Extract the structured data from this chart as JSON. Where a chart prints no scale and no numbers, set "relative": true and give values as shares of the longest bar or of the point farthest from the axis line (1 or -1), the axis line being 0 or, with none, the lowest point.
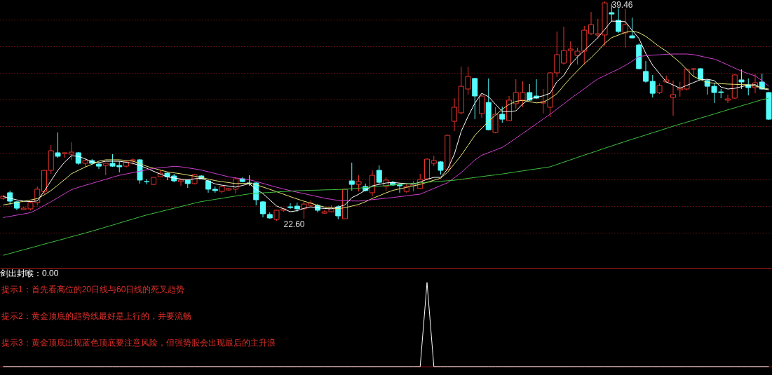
{
  "chart_data": [
    {
      "type": "candlestick",
      "categories": [
        null,
        null,
        null,
        null,
        null,
        null,
        null,
        null,
        null,
        null,
        null,
        null,
        null,
        null,
        null,
        null,
        null,
        null,
        null,
        null,
        null,
        null,
        null,
        null,
        null,
        null,
        null,
        null,
        null,
        null,
        null,
        null,
        null,
        null,
        null,
        null,
        null,
        null,
        null,
        null,
        null,
        null,
        null,
        null,
        null,
        null,
        null,
        null,
        null,
        null,
        null,
        null,
        null,
        null,
        null,
        null,
        null,
        null,
        null,
        null,
        null,
        null,
        null,
        null,
        null,
        null,
        null,
        null,
        null,
        null,
        null,
        null,
        null,
        null,
        null,
        null,
        null,
        null,
        null,
        null,
        null,
        null,
        null,
        null,
        null,
        null,
        null,
        null,
        null,
        null,
        null,
        null,
        null,
        null,
        null,
        null,
        null,
        null,
        null,
        null,
        null,
        null,
        null,
        null,
        null,
        null,
        null,
        null,
        null,
        null,
        null,
        null,
        null
      ],
      "ylim": [
        18.94,
        39.57
      ],
      "yticks": [
        {
          "value": 38.06,
          "label": null
        },
        {
          "value": 36.01,
          "label": null
        },
        {
          "value": 33.97,
          "label": null
        },
        {
          "value": 31.92,
          "label": null
        },
        {
          "value": 29.87,
          "label": null
        },
        {
          "value": 27.82,
          "label": null
        },
        {
          "value": 25.78,
          "label": null
        },
        {
          "value": 23.73,
          "label": null
        },
        {
          "value": 21.68,
          "label": null
        }
      ],
      "grid": "y",
      "tick_labels": false,
      "ohlc": [
        [
          24.32,
          24.59,
          24.22,
          24.49
        ],
        [
          24.76,
          24.92,
          23.84,
          24.11
        ],
        [
          24.06,
          24.11,
          23.41,
          23.57
        ],
        [
          23.46,
          23.68,
          23.41,
          23.57
        ],
        [
          23.52,
          24.11,
          23.41,
          24.0
        ],
        [
          24.0,
          25.24,
          23.79,
          25.03
        ],
        [
          24.86,
          26.53,
          24.65,
          26.48
        ],
        [
          26.48,
          28.42,
          26.21,
          27.99
        ],
        [
          27.83,
          29.39,
          27.45,
          27.56
        ],
        [
          27.77,
          27.83,
          27.45,
          27.83
        ],
        [
          27.72,
          28.63,
          27.29,
          27.88
        ],
        [
          27.83,
          27.88,
          26.91,
          27.02
        ],
        [
          27.02,
          27.4,
          26.75,
          27.23
        ],
        [
          27.23,
          27.34,
          26.91,
          27.02
        ],
        [
          26.96,
          27.07,
          26.59,
          26.8
        ],
        [
          26.86,
          27.07,
          26.1,
          27.02
        ],
        [
          27.02,
          27.72,
          26.75,
          26.8
        ],
        [
          26.86,
          27.18,
          26.32,
          26.75
        ],
        [
          26.8,
          27.23,
          26.7,
          27.13
        ],
        [
          27.23,
          27.4,
          26.91,
          27.29
        ],
        [
          27.29,
          27.34,
          25.46,
          25.73
        ],
        [
          25.62,
          25.83,
          25.4,
          25.59
        ],
        [
          25.4,
          25.94,
          25.35,
          25.94
        ],
        [
          25.99,
          26.53,
          25.94,
          26.26
        ],
        [
          26.26,
          26.32,
          25.73,
          25.99
        ],
        [
          26.05,
          26.21,
          25.56,
          25.67
        ],
        [
          25.62,
          25.83,
          25.29,
          25.73
        ],
        [
          25.73,
          25.78,
          25.13,
          25.46
        ],
        [
          25.46,
          26.21,
          25.4,
          26.16
        ],
        [
          26.05,
          26.1,
          25.78,
          25.83
        ],
        [
          25.67,
          25.73,
          24.76,
          25.03
        ],
        [
          25.03,
          25.24,
          24.76,
          24.92
        ],
        [
          24.86,
          25.29,
          24.7,
          25.24
        ],
        [
          24.97,
          25.13,
          24.92,
          25.08
        ],
        [
          25.03,
          25.94,
          24.7,
          25.83
        ],
        [
          25.83,
          25.94,
          25.56,
          25.62
        ],
        [
          25.51,
          26.1,
          25.29,
          25.46
        ],
        [
          25.51,
          25.56,
          23.79,
          24.22
        ],
        [
          24.06,
          24.11,
          22.87,
          23.14
        ],
        [
          23.09,
          23.25,
          22.76,
          22.82
        ],
        [
          22.71,
          23.46,
          22.6,
          23.41
        ],
        [
          23.41,
          23.57,
          23.3,
          23.52
        ],
        [
          23.68,
          23.95,
          23.52,
          23.62
        ],
        [
          23.73,
          24.0,
          23.3,
          23.52
        ],
        [
          23.52,
          24.11,
          22.76,
          23.89
        ],
        [
          23.79,
          24.16,
          23.68,
          23.95
        ],
        [
          23.79,
          23.89,
          23.25,
          23.41
        ],
        [
          23.19,
          23.41,
          23.14,
          23.3
        ],
        [
          23.3,
          23.79,
          23.25,
          23.57
        ],
        [
          23.68,
          23.79,
          22.71,
          22.98
        ],
        [
          22.76,
          25.08,
          22.76,
          25.03
        ],
        [
          25.67,
          27.07,
          24.92,
          25.4
        ],
        [
          25.4,
          26.1,
          24.86,
          25.62
        ],
        [
          25.24,
          25.46,
          24.86,
          24.92
        ],
        [
          24.76,
          26.48,
          24.49,
          26.1
        ],
        [
          26.48,
          26.86,
          25.4,
          25.56
        ],
        [
          25.24,
          25.94,
          24.92,
          25.73
        ],
        [
          25.56,
          25.67,
          25.29,
          25.35
        ],
        [
          25.4,
          25.46,
          24.76,
          25.29
        ],
        [
          24.86,
          25.46,
          24.76,
          25.24
        ],
        [
          25.29,
          25.67,
          24.86,
          25.46
        ],
        [
          25.08,
          26.21,
          25.03,
          25.78
        ],
        [
          25.83,
          27.4,
          25.78,
          27.34
        ],
        [
          27.02,
          27.61,
          26.8,
          27.23
        ],
        [
          27.13,
          27.18,
          26.16,
          26.48
        ],
        [
          26.53,
          29.23,
          26.48,
          29.17
        ],
        [
          30.25,
          32.03,
          29.5,
          31.33
        ],
        [
          30.9,
          34.45,
          30.79,
          32.94
        ],
        [
          32.73,
          34.45,
          32.3,
          33.7
        ],
        [
          33.54,
          33.59,
          30.41,
          32.19
        ],
        [
          30.84,
          32.3,
          30.52,
          32.19
        ],
        [
          31.7,
          33.54,
          29.55,
          29.6
        ],
        [
          29.39,
          31.33,
          29.33,
          30.79
        ],
        [
          30.79,
          31.38,
          30.14,
          30.41
        ],
        [
          30.3,
          32.19,
          30.25,
          31.87
        ],
        [
          31.6,
          33.48,
          31.22,
          32.46
        ],
        [
          31.87,
          33.32,
          31.33,
          32.46
        ],
        [
          32.46,
          33.11,
          31.81,
          31.87
        ],
        [
          32.19,
          33.48,
          31.97,
          32.03
        ],
        [
          31.65,
          32.73,
          30.84,
          31.76
        ],
        [
          31.33,
          34.02,
          30.57,
          33.97
        ],
        [
          33.97,
          37.15,
          33.64,
          35.37
        ],
        [
          34.72,
          37.52,
          34.61,
          35.69
        ],
        [
          35.69,
          36.39,
          34.61,
          35.8
        ],
        [
          35.31,
          35.91,
          34.61,
          35.64
        ],
        [
          35.64,
          37.58,
          34.61,
          37.25
        ],
        [
          36.98,
          38.65,
          36.88,
          37.68
        ],
        [
          36.88,
          38.12,
          36.61,
          36.98
        ],
        [
          36.88,
          39.46,
          36.07,
          39.35
        ],
        [
          38.6,
          39.3,
          37.9,
          38.49
        ],
        [
          38.01,
          38.92,
          37.04,
          37.15
        ],
        [
          37.04,
          38.87,
          35.91,
          37.68
        ],
        [
          36.82,
          38.22,
          36.61,
          36.66
        ],
        [
          36.12,
          36.23,
          34.24,
          34.29
        ],
        [
          34.08,
          34.88,
          33.21,
          33.32
        ],
        [
          33.32,
          33.81,
          32.08,
          32.4
        ],
        [
          32.46,
          33.16,
          32.35,
          33.0
        ],
        [
          33.27,
          33.75,
          33.21,
          33.43
        ],
        [
          32.08,
          33.38,
          30.68,
          32.3
        ],
        [
          32.67,
          33.27,
          32.14,
          32.78
        ],
        [
          32.73,
          34.29,
          32.62,
          34.24
        ],
        [
          34.24,
          34.35,
          33.64,
          34.29
        ],
        [
          34.29,
          34.35,
          33.43,
          33.48
        ],
        [
          33.38,
          33.48,
          32.3,
          32.94
        ],
        [
          32.94,
          33.21,
          31.65,
          32.46
        ],
        [
          32.51,
          32.73,
          32.03,
          32.46
        ],
        [
          31.87,
          32.3,
          31.65,
          31.97
        ],
        [
          32.03,
          33.86,
          31.97,
          33.81
        ],
        [
          33.43,
          34.24,
          32.73,
          33.27
        ],
        [
          33.05,
          33.54,
          32.24,
          32.84
        ],
        [
          32.84,
          33.86,
          32.4,
          33.21
        ],
        [
          33.27,
          33.91,
          32.67,
          32.73
        ],
        [
          32.46,
          32.51,
          30.36,
          30.41
        ]
      ],
      "colors": [
        "#e8342c",
        "#54fcfc",
        "#54fcfc",
        "#e8342c",
        "#e8342c",
        "#e8342c",
        "#e8342c",
        "#e8342c",
        "#54fcfc",
        "#e8342c",
        "#e8342c",
        "#54fcfc",
        "#e8342c",
        "#54fcfc",
        "#54fcfc",
        "#e8342c",
        "#54fcfc",
        "#54fcfc",
        "#e8342c",
        "#e8342c",
        "#54fcfc",
        "#54fcfc",
        "#e8342c",
        "#e8342c",
        "#54fcfc",
        "#54fcfc",
        "#e8342c",
        "#54fcfc",
        "#e8342c",
        "#54fcfc",
        "#54fcfc",
        "#54fcfc",
        "#e8342c",
        "#e8342c",
        "#e8342c",
        "#54fcfc",
        "#54fcfc",
        "#54fcfc",
        "#54fcfc",
        "#54fcfc",
        "#e8342c",
        "#e8342c",
        "#54fcfc",
        "#54fcfc",
        "#e8342c",
        "#e8342c",
        "#54fcfc",
        "#e8342c",
        "#e8342c",
        "#54fcfc",
        "#e8342c",
        "#54fcfc",
        "#e8342c",
        "#54fcfc",
        "#e8342c",
        "#54fcfc",
        "#e8342c",
        "#54fcfc",
        "#54fcfc",
        "#e8342c",
        "#e8342c",
        "#e8342c",
        "#e8342c",
        "#e8342c",
        "#54fcfc",
        "#e8342c",
        "#e8342c",
        "#e8342c",
        "#e8342c",
        "#54fcfc",
        "#e8342c",
        "#54fcfc",
        "#e8342c",
        "#54fcfc",
        "#e8342c",
        "#e8342c",
        "#e8342c",
        "#54fcfc",
        "#54fcfc",
        "#e8342c",
        "#e8342c",
        "#e8342c",
        "#e8342c",
        "#e8342c",
        "#e8342c",
        "#e8342c",
        "#e8342c",
        "#e8342c",
        "#e8342c",
        "#54fcfc",
        "#54fcfc",
        "#e8342c",
        "#54fcfc",
        "#54fcfc",
        "#54fcfc",
        "#54fcfc",
        "#e8342c",
        "#e8342c",
        "#e8342c",
        "#e8342c",
        "#e8342c",
        "#e8342c",
        "#54fcfc",
        "#54fcfc",
        "#54fcfc",
        "#54fcfc",
        "#e8342c",
        "#e8342c",
        "#54fcfc",
        "#54fcfc",
        "#e8342c",
        "#54fcfc",
        "#54fcfc"
      ],
      "series": [
        {
          "type": "line",
          "color": "#ffffff",
          "values": [
            24.46,
            24.34,
            24.21,
            24.11,
            24.08,
            24.13,
            24.88,
            25.68,
            26.48,
            27.11,
            27.6,
            27.56,
            27.36,
            27.13,
            27.07,
            27.18,
            27.18,
            27.18,
            27.1,
            27.01,
            26.85,
            26.64,
            26.41,
            26.19,
            25.98,
            25.89,
            25.81,
            25.75,
            25.83,
            25.87,
            25.66,
            25.44,
            25.34,
            25.27,
            25.19,
            25.32,
            25.46,
            25.03,
            24.69,
            24.22,
            23.74,
            23.53,
            23.3,
            23.38,
            23.56,
            23.67,
            23.6,
            23.55,
            23.52,
            23.65,
            23.83,
            24.38,
            24.64,
            24.96,
            25.29,
            25.4,
            25.51,
            25.55,
            25.5,
            25.46,
            25.41,
            25.58,
            25.79,
            25.94,
            25.94,
            26.57,
            27.72,
            29.48,
            30.62,
            31.64,
            32.4,
            32.14,
            31.57,
            31.0,
            31.0,
            31.05,
            31.59,
            31.98,
            32.08,
            32.21,
            32.4,
            33.29,
            33.76,
            34.61,
            35.2,
            35.69,
            36.17,
            36.68,
            37.32,
            37.95,
            37.93,
            37.91,
            37.25,
            36.61,
            35.46,
            34.56,
            33.92,
            33.27,
            33.04,
            32.79,
            33.01,
            33.23,
            33.44,
            33.48,
            33.38,
            32.88,
            32.73,
            32.78,
            32.91,
            33.03,
            33.07,
            32.76,
            32.67
          ]
        },
        {
          "type": "line",
          "color": "#e8e87a",
          "values": [
            23.82,
            23.91,
            24.01,
            24.1,
            24.2,
            24.31,
            24.59,
            24.93,
            25.34,
            25.78,
            26.22,
            26.48,
            26.73,
            26.95,
            27.18,
            27.29,
            27.29,
            27.29,
            27.24,
            27.18,
            27.0,
            26.79,
            26.64,
            26.5,
            26.36,
            26.29,
            26.21,
            26.12,
            26.03,
            25.93,
            25.81,
            25.69,
            25.61,
            25.54,
            25.46,
            25.48,
            25.5,
            25.38,
            25.2,
            25.02,
            24.84,
            24.65,
            24.46,
            24.28,
            24.11,
            23.96,
            23.79,
            23.66,
            23.6,
            23.53,
            23.61,
            23.73,
            23.86,
            24.07,
            24.32,
            24.53,
            24.75,
            24.94,
            25.06,
            25.17,
            25.29,
            25.4,
            25.56,
            25.72,
            25.88,
            26.33,
            26.98,
            27.63,
            28.4,
            29.17,
            29.71,
            30.25,
            30.71,
            31.17,
            31.54,
            31.78,
            31.86,
            31.76,
            31.66,
            31.72,
            32.0,
            32.37,
            32.99,
            33.59,
            34.13,
            34.67,
            35.13,
            35.66,
            36.24,
            36.67,
            36.88,
            37.08,
            37.2,
            37.06,
            36.78,
            36.38,
            35.98,
            35.64,
            35.21,
            34.77,
            34.23,
            33.69,
            33.46,
            33.23,
            33.18,
            33.14,
            33.11,
            33.09,
            33.07,
            33.06,
            32.96,
            32.81,
            32.73
          ]
        },
        {
          "type": "line",
          "color": "#d040d0",
          "values": [
            22.85,
            22.94,
            23.04,
            23.13,
            23.23,
            23.48,
            23.78,
            24.07,
            24.38,
            24.69,
            25.0,
            25.17,
            25.33,
            25.48,
            25.64,
            25.79,
            25.95,
            26.1,
            26.2,
            26.31,
            26.41,
            26.52,
            26.63,
            26.68,
            26.73,
            26.79,
            26.75,
            26.67,
            26.59,
            26.5,
            26.37,
            26.24,
            26.11,
            25.98,
            25.9,
            25.83,
            25.75,
            25.63,
            25.48,
            25.33,
            25.18,
            25.05,
            24.92,
            24.8,
            24.69,
            24.57,
            24.46,
            24.34,
            24.25,
            24.17,
            24.15,
            24.13,
            24.12,
            24.17,
            24.23,
            24.28,
            24.34,
            24.39,
            24.46,
            24.52,
            24.59,
            24.65,
            24.87,
            25.09,
            25.31,
            25.52,
            25.91,
            26.31,
            26.79,
            27.27,
            27.64,
            27.84,
            28.04,
            28.24,
            28.59,
            28.95,
            29.32,
            29.68,
            30.05,
            30.42,
            30.79,
            31.19,
            31.59,
            31.99,
            32.37,
            32.75,
            33.14,
            33.51,
            33.76,
            34.01,
            34.26,
            34.54,
            34.87,
            35.23,
            35.29,
            35.33,
            35.36,
            35.4,
            35.42,
            35.42,
            35.42,
            35.37,
            35.26,
            35.14,
            35.03,
            34.82,
            34.58,
            34.34,
            34.1,
            33.91,
            33.74,
            33.37,
            32.94
          ]
        },
        {
          "type": "line",
          "color": "#40c040",
          "values": [
            19.95,
            20.09,
            20.24,
            20.38,
            20.52,
            20.66,
            20.81,
            20.95,
            21.09,
            21.23,
            21.38,
            21.52,
            21.66,
            21.81,
            21.96,
            22.12,
            22.27,
            22.43,
            22.59,
            22.74,
            22.9,
            23.05,
            23.18,
            23.31,
            23.44,
            23.57,
            23.7,
            23.83,
            23.96,
            24.08,
            24.16,
            24.25,
            24.33,
            24.42,
            24.5,
            24.59,
            24.67,
            24.72,
            24.75,
            24.78,
            24.82,
            24.85,
            24.88,
            24.91,
            24.93,
            24.95,
            24.96,
            24.98,
            24.99,
            25.01,
            25.02,
            25.06,
            25.11,
            25.16,
            25.21,
            25.26,
            25.31,
            25.36,
            25.4,
            25.44,
            25.48,
            25.52,
            25.56,
            25.6,
            25.64,
            25.68,
            25.72,
            25.79,
            25.86,
            25.93,
            26.0,
            26.07,
            26.13,
            26.2,
            26.28,
            26.36,
            26.44,
            26.52,
            26.59,
            26.67,
            26.75,
            26.93,
            27.11,
            27.29,
            27.47,
            27.65,
            27.82,
            28.0,
            28.18,
            28.35,
            28.53,
            28.7,
            28.87,
            29.03,
            29.2,
            29.37,
            29.53,
            29.7,
            29.87,
            30.03,
            30.18,
            30.34,
            30.5,
            30.65,
            30.81,
            30.97,
            31.13,
            31.28,
            31.44,
            31.59,
            31.75,
            31.91,
            32.03
          ]
        }
      ],
      "annotations": [
        "39.46",
        "22.60"
      ]
    },
    {
      "type": "line",
      "relative": true,
      "title": "剑出封喉：0.00",
      "categories": [
        null,
        null,
        null,
        null,
        null,
        null,
        null,
        null,
        null,
        null,
        null,
        null,
        null,
        null,
        null,
        null,
        null,
        null,
        null,
        null,
        null,
        null,
        null,
        null,
        null,
        null,
        null,
        null,
        null,
        null,
        null,
        null,
        null,
        null,
        null,
        null,
        null,
        null,
        null,
        null,
        null,
        null,
        null,
        null,
        null,
        null,
        null,
        null,
        null,
        null,
        null,
        null,
        null,
        null,
        null,
        null,
        null,
        null,
        null,
        null,
        null,
        null,
        null,
        null,
        null,
        null,
        null,
        null,
        null,
        null,
        null,
        null,
        null,
        null,
        null,
        null,
        null,
        null,
        null,
        null,
        null,
        null,
        null,
        null,
        null,
        null,
        null,
        null,
        null,
        null,
        null,
        null,
        null,
        null,
        null,
        null,
        null,
        null,
        null,
        null,
        null,
        null,
        null,
        null,
        null,
        null,
        null,
        null,
        null,
        null,
        null,
        null,
        null
      ],
      "values": [
        0,
        0,
        0,
        0,
        0,
        0,
        0,
        0,
        0,
        0,
        0,
        0,
        0,
        0,
        0,
        0,
        0,
        0,
        0,
        0,
        0,
        0,
        0,
        0,
        0,
        0,
        0,
        0,
        0,
        0,
        0,
        0,
        0,
        0,
        0,
        0,
        0,
        0,
        0,
        0,
        0,
        0,
        0,
        0,
        0,
        0,
        0,
        0,
        0,
        0,
        0,
        0,
        0,
        0,
        0,
        0,
        0,
        0,
        0,
        0,
        0,
        0,
        1,
        0,
        0,
        0,
        0,
        0,
        0,
        0,
        0,
        0,
        0,
        0,
        0,
        0,
        0,
        0,
        0,
        0,
        0,
        0,
        0,
        0,
        0,
        0,
        0,
        0,
        0,
        0,
        0,
        0,
        0,
        0,
        0,
        0,
        0,
        0,
        0,
        0,
        0,
        0,
        0,
        0,
        0,
        0,
        0,
        0,
        0,
        0,
        0,
        0,
        0
      ],
      "color": "#ffffff",
      "tick_labels": false,
      "annotations": [
        "提示1：首先看高位的20日线与60日线的死叉趋势",
        "提示2：黄金顶底的趋势线最好是上行的，并要流畅",
        "提示3：黄金顶底出现蓝色顶底要注意风险，但强势股会出现最后的主升浪"
      ]
    }
  ]
}
